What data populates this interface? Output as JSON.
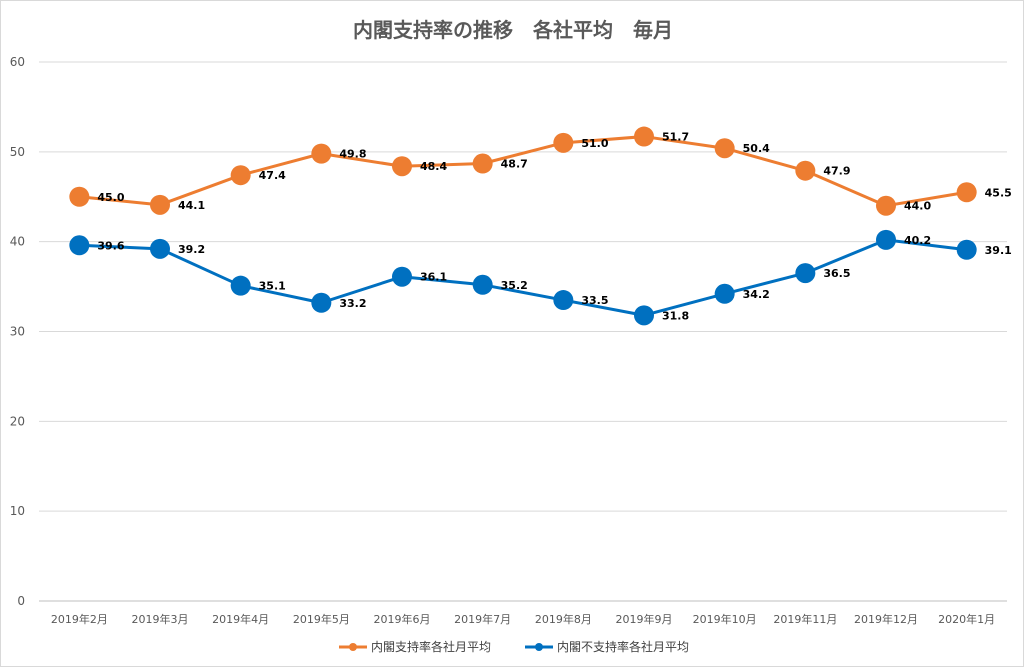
{
  "chart_data": {
    "type": "line",
    "title": "内閣支持率の推移　各社平均　毎月",
    "xlabel": "",
    "ylabel": "",
    "ylim": [
      0,
      60
    ],
    "yticks": [
      0,
      10,
      20,
      30,
      40,
      50,
      60
    ],
    "grid": true,
    "legend_position": "bottom",
    "categories": [
      "2019年2月",
      "2019年3月",
      "2019年4月",
      "2019年5月",
      "2019年6月",
      "2019年7月",
      "2019年8月",
      "2019年9月",
      "2019年10月",
      "2019年11月",
      "2019年12月",
      "2020年1月"
    ],
    "series": [
      {
        "name": "内閣支持率各社月平均",
        "color": "#ed7d31",
        "values": [
          45.0,
          44.1,
          47.4,
          49.8,
          48.4,
          48.7,
          51.0,
          51.7,
          50.4,
          47.9,
          44.0,
          45.5
        ],
        "labels": [
          "45.0",
          "44.1",
          "47.4",
          "49.8",
          "48.4",
          "48.7",
          "51.0",
          "51.7",
          "50.4",
          "47.9",
          "44.0",
          "45.5"
        ]
      },
      {
        "name": "内閣不支持率各社月平均",
        "color": "#0070c0",
        "values": [
          39.6,
          39.2,
          35.1,
          33.2,
          36.1,
          35.2,
          33.5,
          31.8,
          34.2,
          36.5,
          40.2,
          39.1
        ],
        "labels": [
          "39.6",
          "39.2",
          "35.1",
          "33.2",
          "36.1",
          "35.2",
          "33.5",
          "31.8",
          "34.2",
          "36.5",
          "40.2",
          "39.1"
        ]
      }
    ]
  }
}
